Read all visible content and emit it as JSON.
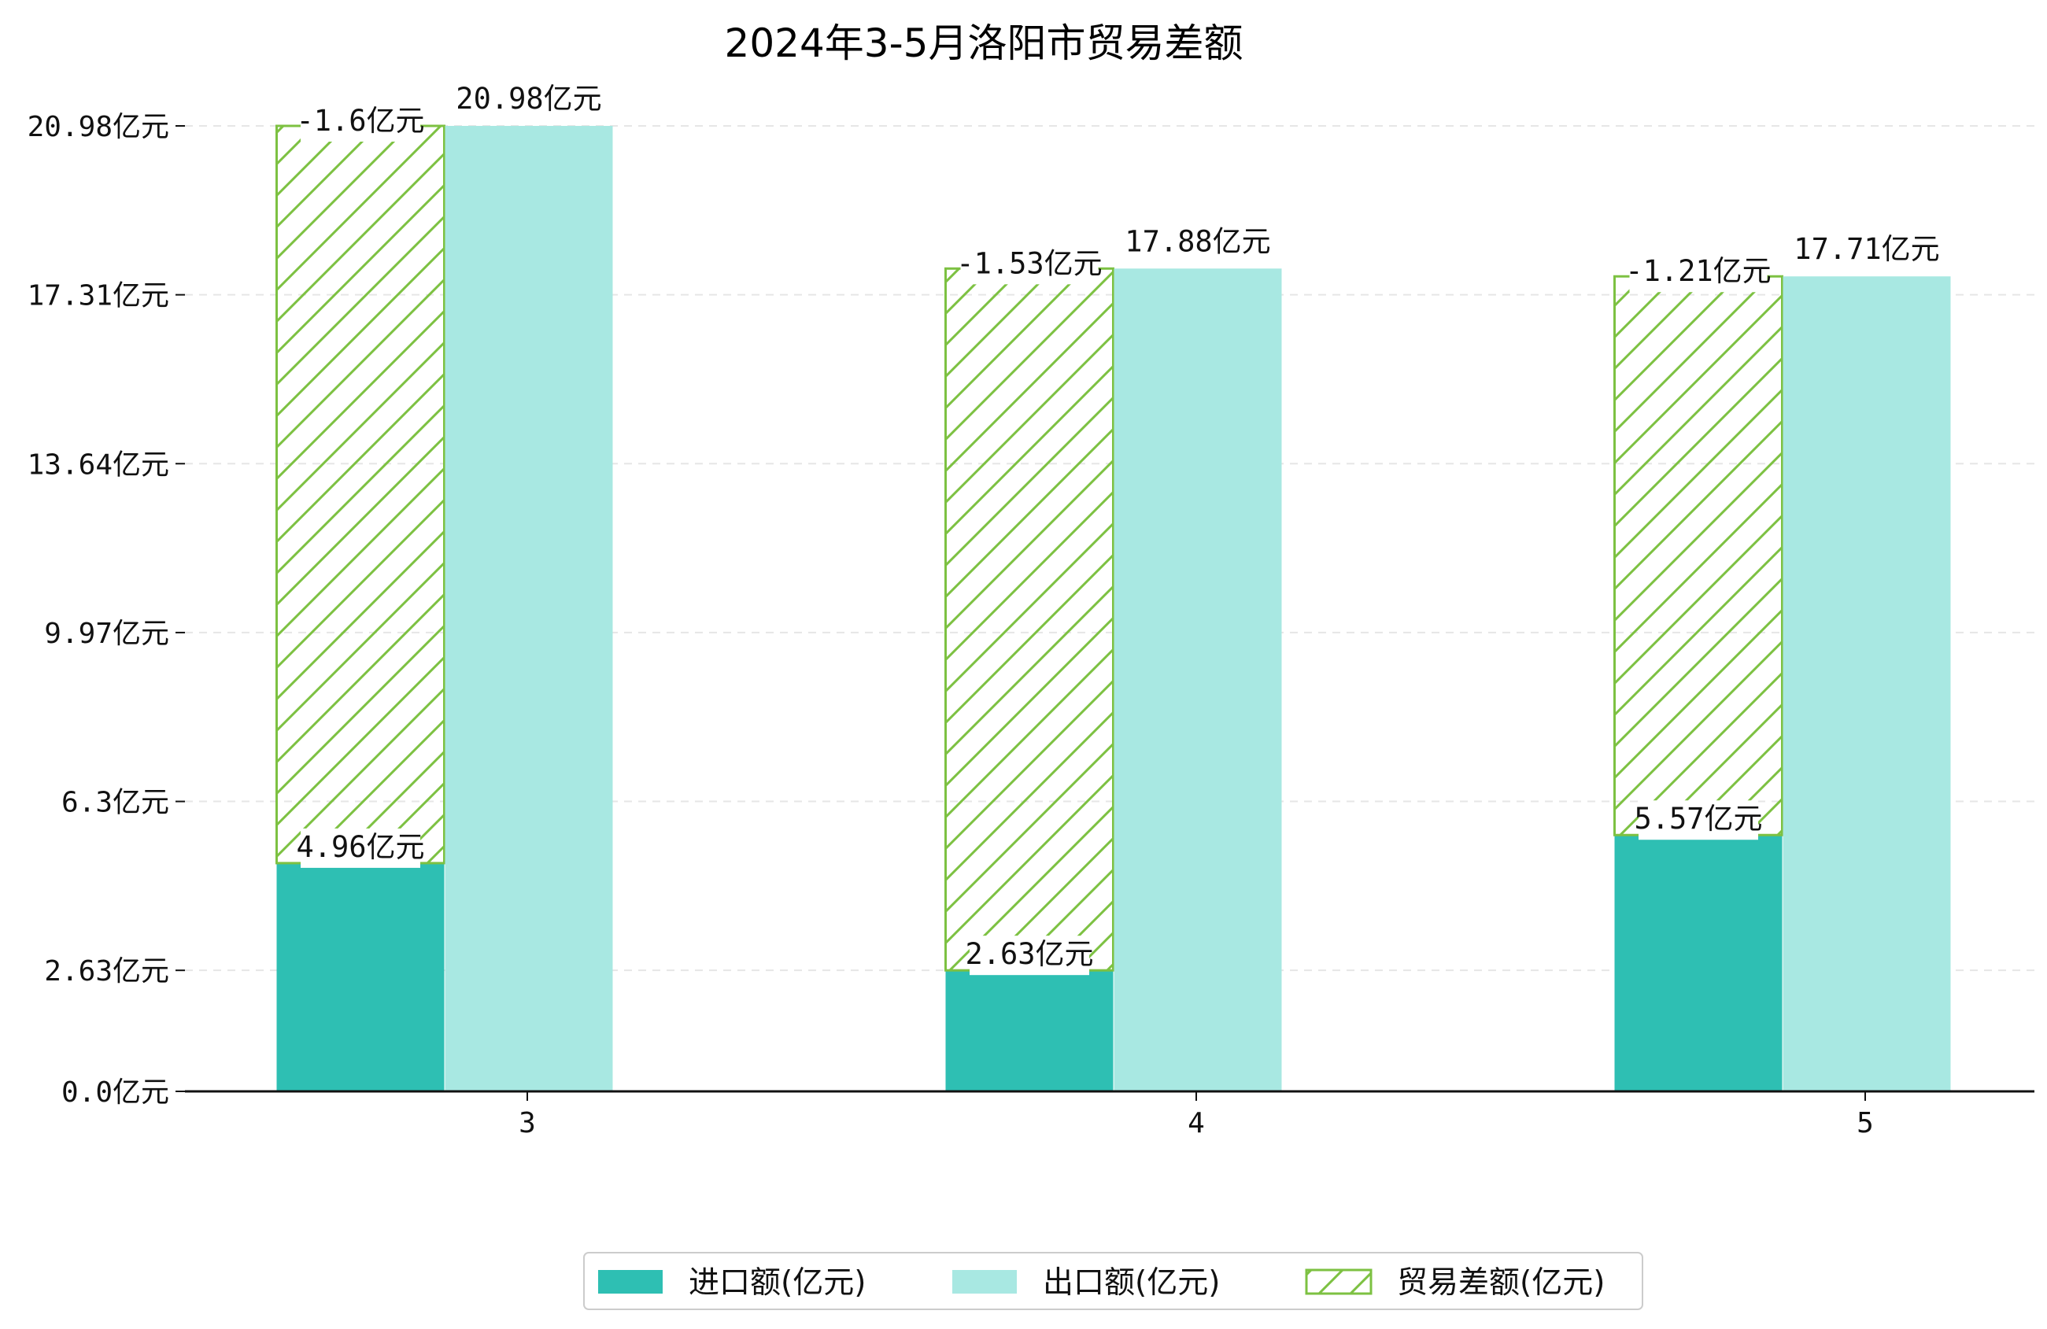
{
  "chart_data": {
    "type": "bar",
    "title": "2024年3-5月洛阳市贸易差额",
    "xlabel": "",
    "ylabel": "",
    "categories": [
      "3",
      "4",
      "5"
    ],
    "y_ticks": [
      "0.0亿元",
      "2.63亿元",
      "6.3亿元",
      "9.97亿元",
      "13.64亿元",
      "17.31亿元",
      "20.98亿元"
    ],
    "y_tick_values": [
      0.0,
      2.63,
      6.3,
      9.97,
      13.64,
      17.31,
      20.98
    ],
    "ylim": [
      0,
      20.98
    ],
    "grid": "horizontal dashed",
    "legend_position": "bottom-center",
    "series": [
      {
        "name": "进口额(亿元)",
        "color": "#2ebfb3",
        "values": [
          4.96,
          2.63,
          5.57
        ],
        "labels": [
          "4.96亿元",
          "2.63亿元",
          "5.57亿元"
        ]
      },
      {
        "name": "出口额(亿元)",
        "color": "#a8e8e2",
        "values": [
          20.98,
          17.88,
          17.71
        ],
        "labels": [
          "20.98亿元",
          "17.88亿元",
          "17.71亿元"
        ]
      },
      {
        "name": "贸易差额(亿元)",
        "color": "#7dc142",
        "pattern": "hatch",
        "values": [
          -1.6,
          -1.53,
          -1.21
        ],
        "labels": [
          "-1.6亿元",
          "-1.53亿元",
          "-1.21亿元"
        ]
      }
    ]
  }
}
